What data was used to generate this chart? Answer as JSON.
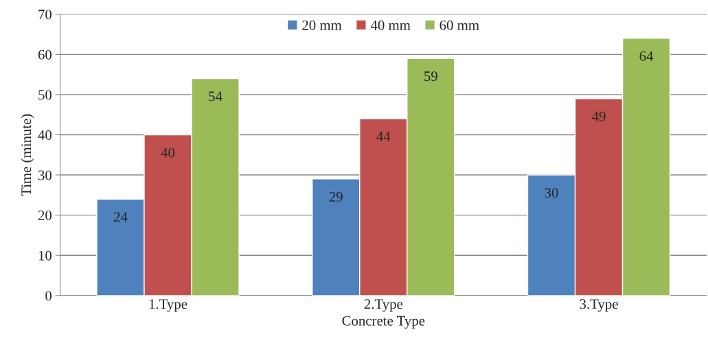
{
  "chart_data": {
    "type": "bar",
    "xlabel": "Concrete Type",
    "ylabel": "Time (minute)",
    "categories": [
      "1.Type",
      "2.Type",
      "3.Type"
    ],
    "series": [
      {
        "name": "20 mm",
        "color": "#4f81bd",
        "values": [
          24,
          29,
          30
        ]
      },
      {
        "name": "40 mm",
        "color": "#c0504d",
        "values": [
          40,
          44,
          49
        ]
      },
      {
        "name": "60 mm",
        "color": "#9bbb59",
        "values": [
          54,
          59,
          64
        ]
      }
    ],
    "ylim": [
      0,
      70
    ],
    "yticks": [
      0,
      10,
      20,
      30,
      40,
      50,
      60,
      70
    ],
    "grid": "y",
    "legend": "top",
    "data_labels": true
  }
}
